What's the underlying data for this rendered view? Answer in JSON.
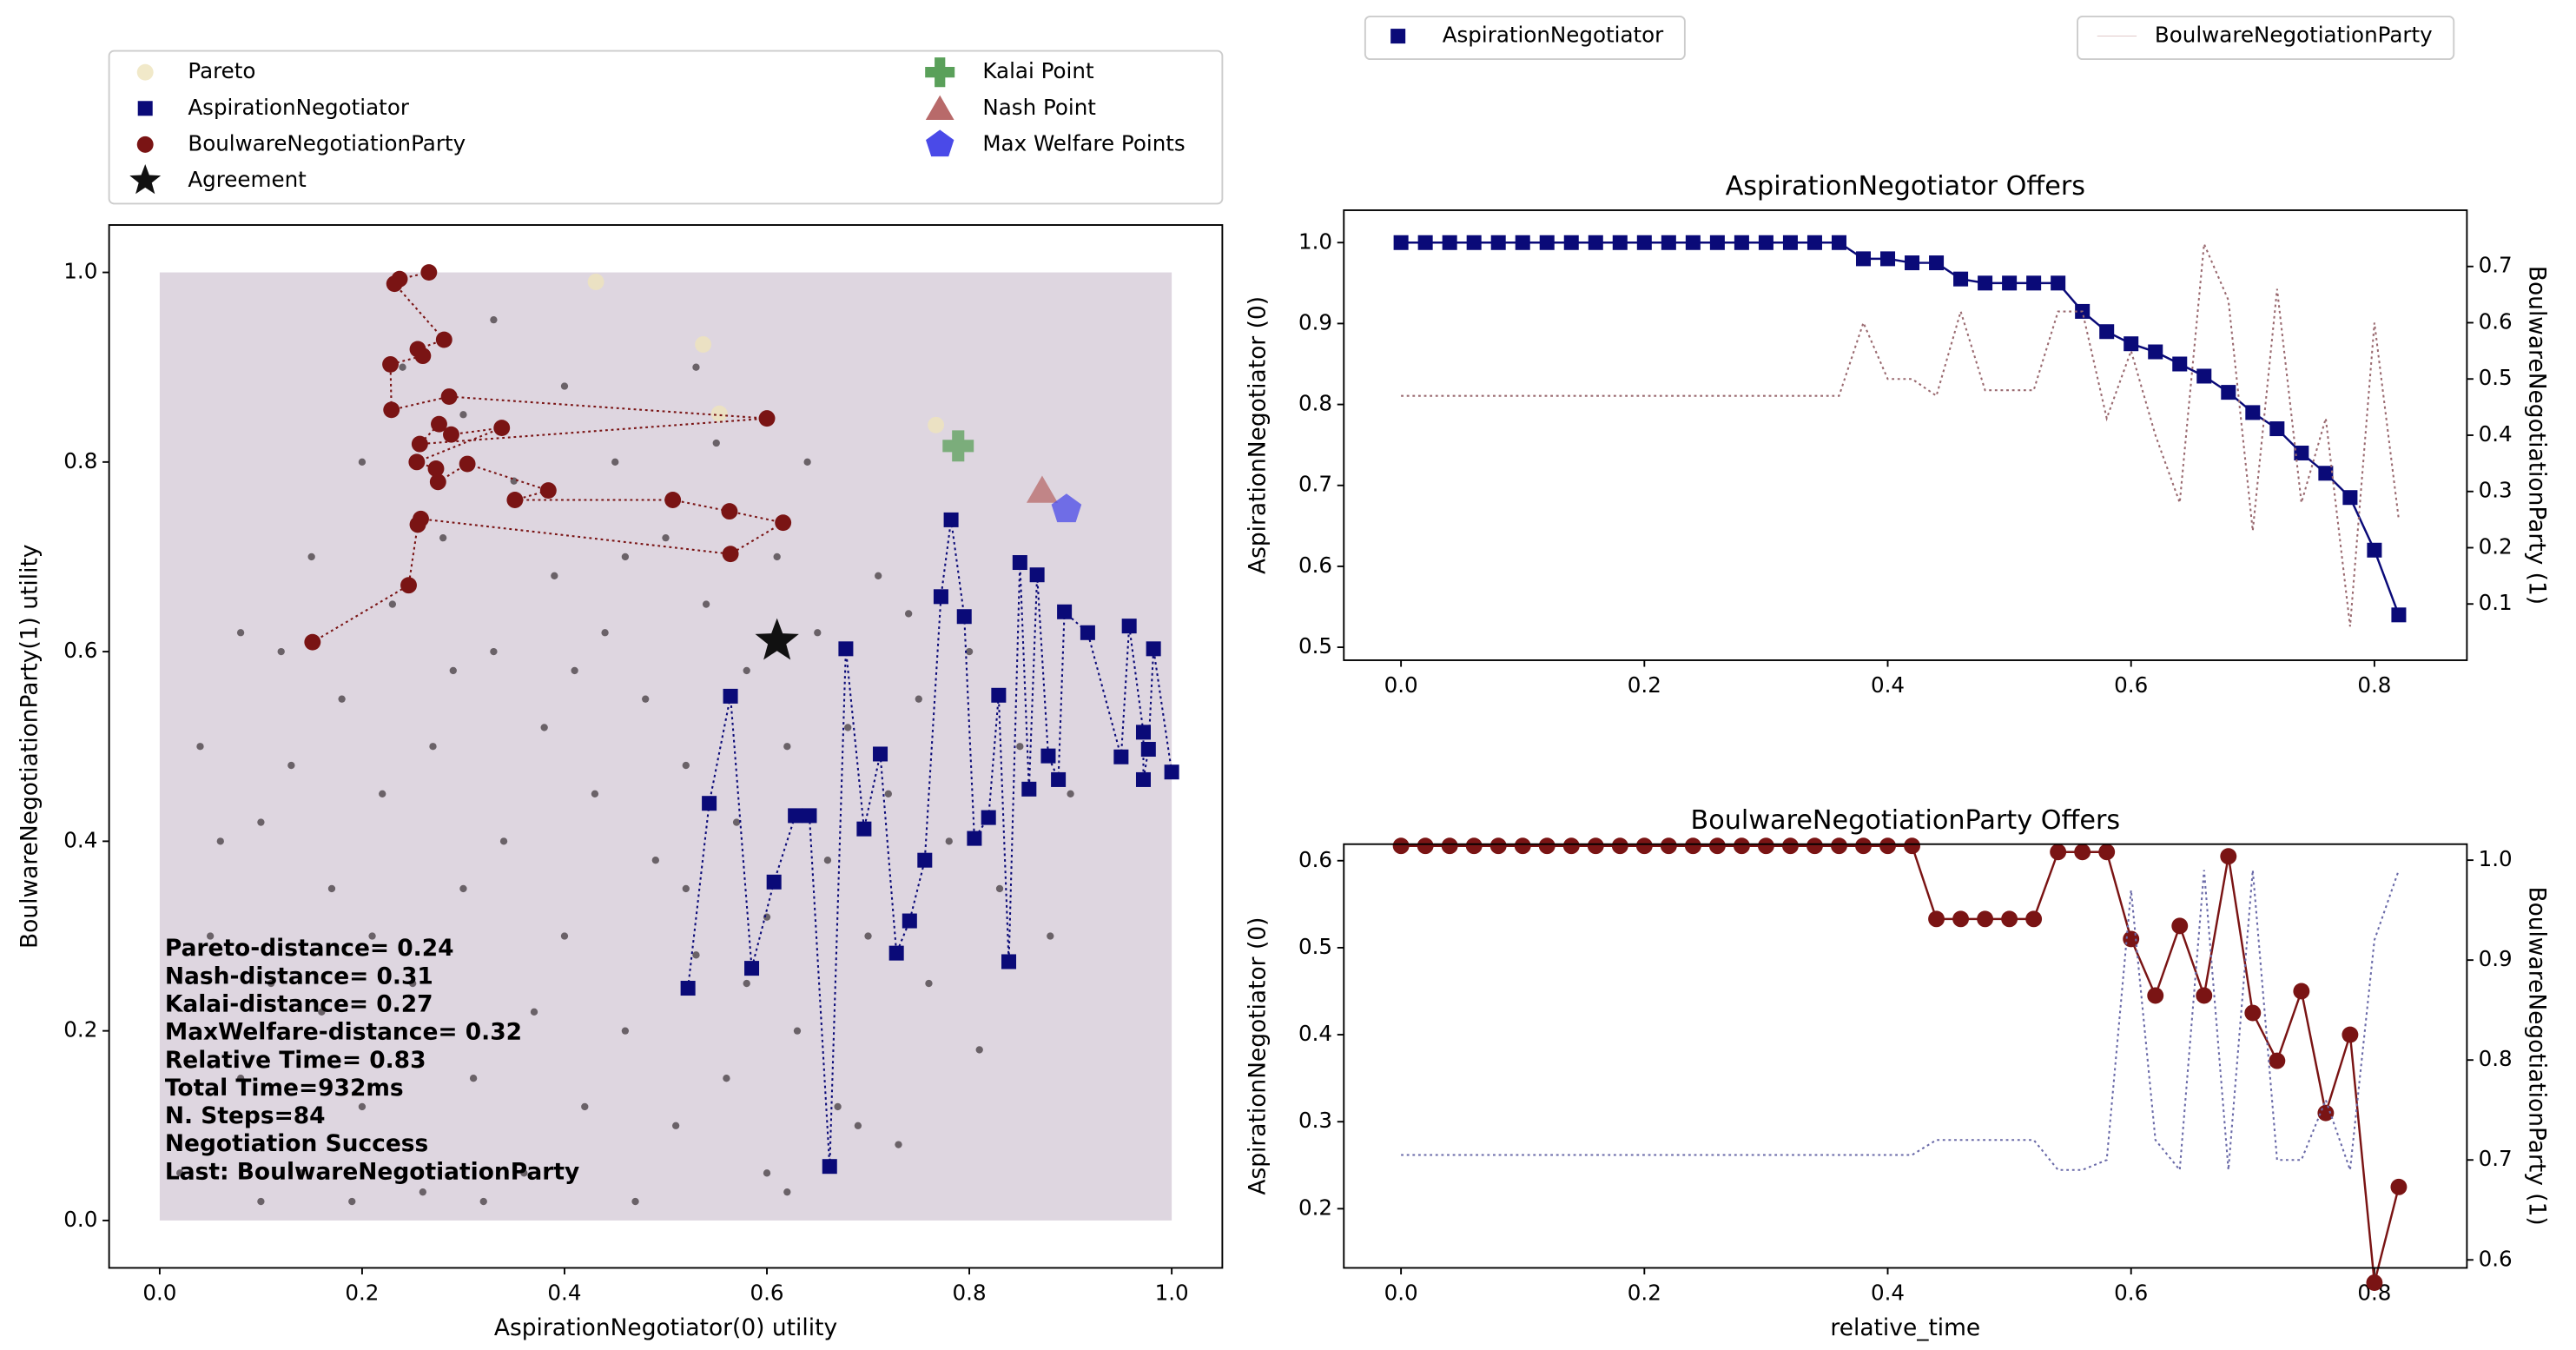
{
  "chart_data": [
    {
      "type": "scatter",
      "xlabel": "AspirationNegotiator(0) utility",
      "ylabel": "BoulwareNegotiationParty(1) utility",
      "xlim": [
        -0.05,
        1.05
      ],
      "ylim": [
        -0.05,
        1.05
      ],
      "xticks": [
        {
          "value": 0,
          "label": "0.0"
        },
        0.2,
        0.4,
        0.6,
        0.8,
        {
          "value": 1,
          "label": "1.0"
        }
      ],
      "yticks": [
        {
          "value": 0,
          "label": "0.0"
        },
        0.2,
        0.4,
        0.6,
        0.8,
        {
          "value": 1,
          "label": "1.0"
        }
      ],
      "legend": "top",
      "annotations": [
        "Pareto-distance= 0.24",
        "Nash-distance= 0.31",
        "Kalai-distance= 0.27",
        "MaxWelfare-distance= 0.32",
        "Relative Time= 0.83",
        "Total Time=932ms",
        "N. Steps=84",
        "Negotiation Success",
        "Last: BoulwareNegotiationParty"
      ],
      "series": [
        {
          "color": "#6a6268",
          "marker": "dot",
          "x": [
            0.02,
            0.05,
            0.04,
            0.08,
            0.1,
            0.12,
            0.11,
            0.15,
            0.14,
            0.17,
            0.18,
            0.2,
            0.2,
            0.22,
            0.23,
            0.25,
            0.26,
            0.27,
            0.28,
            0.3,
            0.3,
            0.31,
            0.33,
            0.34,
            0.35,
            0.36,
            0.37,
            0.38,
            0.39,
            0.4,
            0.4,
            0.42,
            0.43,
            0.44,
            0.45,
            0.46,
            0.47,
            0.48,
            0.49,
            0.5,
            0.51,
            0.52,
            0.53,
            0.54,
            0.55,
            0.56,
            0.57,
            0.58,
            0.6,
            0.6,
            0.61,
            0.62,
            0.63,
            0.65,
            0.66,
            0.67,
            0.68,
            0.7,
            0.71,
            0.72,
            0.73,
            0.75,
            0.76,
            0.78,
            0.8,
            0.81,
            0.83,
            0.85,
            0.88,
            0.9,
            0.08,
            0.13,
            0.16,
            0.19,
            0.24,
            0.29,
            0.32,
            0.41,
            0.46,
            0.53,
            0.58,
            0.64,
            0.69,
            0.74,
            0.06,
            0.1,
            0.21,
            0.33,
            0.52,
            0.62
          ],
          "y": [
            0.05,
            0.3,
            0.5,
            0.15,
            0.42,
            0.6,
            0.25,
            0.7,
            0.05,
            0.35,
            0.55,
            0.8,
            0.12,
            0.45,
            0.65,
            0.25,
            0.03,
            0.5,
            0.72,
            0.85,
            0.35,
            0.15,
            0.6,
            0.4,
            0.78,
            0.05,
            0.22,
            0.52,
            0.68,
            0.88,
            0.3,
            0.12,
            0.45,
            0.62,
            0.8,
            0.2,
            0.02,
            0.55,
            0.38,
            0.72,
            0.1,
            0.48,
            0.28,
            0.65,
            0.82,
            0.15,
            0.42,
            0.58,
            0.05,
            0.32,
            0.7,
            0.5,
            0.2,
            0.62,
            0.38,
            0.12,
            0.52,
            0.3,
            0.68,
            0.45,
            0.08,
            0.55,
            0.25,
            0.4,
            0.6,
            0.18,
            0.35,
            0.5,
            0.3,
            0.45,
            0.62,
            0.48,
            0.22,
            0.02,
            0.9,
            0.58,
            0.02,
            0.58,
            0.7,
            0.9,
            0.25,
            0.8,
            0.1,
            0.64,
            0.4,
            0.02,
            0.3,
            0.95,
            0.35,
            0.03
          ]
        },
        {
          "name": "Pareto",
          "color": "#eee3bb",
          "marker": "circle",
          "alpha": 0.8,
          "x": [
            0.431,
            0.537,
            0.553,
            0.767
          ],
          "y": [
            0.99,
            0.924,
            0.851,
            0.839
          ]
        },
        {
          "name": "AspirationNegotiator",
          "color": "#0a0a78",
          "marker": "square",
          "linestyle": "dotted",
          "x": [
            0.522,
            0.543,
            0.564,
            0.585,
            0.607,
            0.628,
            0.642,
            0.662,
            0.678,
            0.696,
            0.712,
            0.728,
            0.741,
            0.756,
            0.772,
            0.782,
            0.795,
            0.805,
            0.819,
            0.829,
            0.839,
            0.85,
            0.859,
            0.867,
            0.878,
            0.888,
            0.894,
            0.917,
            0.95,
            0.958,
            0.972,
            0.972,
            0.977,
            0.982,
            1.0
          ],
          "y": [
            0.245,
            0.44,
            0.553,
            0.266,
            0.357,
            0.427,
            0.427,
            0.057,
            0.603,
            0.413,
            0.492,
            0.282,
            0.316,
            0.38,
            0.658,
            0.739,
            0.637,
            0.403,
            0.425,
            0.554,
            0.273,
            0.694,
            0.455,
            0.681,
            0.49,
            0.465,
            0.642,
            0.62,
            0.489,
            0.627,
            0.515,
            0.465,
            0.497,
            0.603,
            0.473
          ]
        },
        {
          "name": "BoulwareNegotiationParty",
          "color": "#7a1414",
          "marker": "circle",
          "linestyle": "dotted",
          "x": [
            0.266,
            0.237,
            0.232,
            0.281,
            0.255,
            0.26,
            0.228,
            0.229,
            0.286,
            0.6,
            0.257,
            0.276,
            0.288,
            0.338,
            0.254,
            0.273,
            0.275,
            0.304,
            0.384,
            0.351,
            0.507,
            0.563,
            0.616,
            0.564,
            0.258,
            0.255,
            0.246,
            0.151
          ],
          "y": [
            1.0,
            0.993,
            0.988,
            0.929,
            0.919,
            0.912,
            0.903,
            0.855,
            0.869,
            0.846,
            0.819,
            0.84,
            0.829,
            0.836,
            0.8,
            0.793,
            0.779,
            0.798,
            0.77,
            0.76,
            0.76,
            0.748,
            0.736,
            0.703,
            0.74,
            0.734,
            0.67,
            0.61
          ]
        },
        {
          "name": "Agreement",
          "color": "#111111",
          "marker": "star",
          "x": [
            0.61
          ],
          "y": [
            0.611
          ]
        },
        {
          "name": "Kalai Point",
          "color": "#5aa05a",
          "marker": "plus",
          "x": [
            0.789
          ],
          "y": [
            0.817
          ]
        },
        {
          "name": "Nash Point",
          "color": "#b86a6a",
          "marker": "triangle",
          "x": [
            0.872
          ],
          "y": [
            0.77
          ]
        },
        {
          "name": "Max Welfare Points",
          "color": "#4a4ae8",
          "marker": "pentagon",
          "x": [
            0.896
          ],
          "y": [
            0.75
          ]
        }
      ]
    },
    {
      "type": "line",
      "title": "AspirationNegotiator Offers",
      "ylabel": "AspirationNegotiator (0)",
      "y2label": "BoulwareNegotiationParty (1)",
      "legend": "top-left",
      "xlim": [
        -0.047,
        0.876
      ],
      "ylim": [
        0.484,
        1.04
      ],
      "y2lim": [
        0,
        0.8
      ],
      "xticks": [
        {
          "value": 0,
          "label": "0.0"
        },
        0.2,
        0.4,
        0.6,
        0.8
      ],
      "yticks": [
        0.5,
        0.6,
        0.7,
        0.8,
        0.9,
        {
          "value": 1,
          "label": "1.0"
        }
      ],
      "y2ticks": [
        0.1,
        0.2,
        0.3,
        0.4,
        0.5,
        0.6,
        0.7
      ],
      "x": [
        0,
        0.02,
        0.04,
        0.06,
        0.08,
        0.1,
        0.12,
        0.14,
        0.16,
        0.18,
        0.2,
        0.22,
        0.24,
        0.26,
        0.28,
        0.3,
        0.32,
        0.34,
        0.36,
        0.38,
        0.4,
        0.42,
        0.44,
        0.46,
        0.48,
        0.5,
        0.52,
        0.54,
        0.56,
        0.58,
        0.6,
        0.62,
        0.64,
        0.66,
        0.68,
        0.7,
        0.72,
        0.74,
        0.76,
        0.78,
        0.8,
        0.82
      ],
      "series": [
        {
          "name": "AspirationNegotiator",
          "color": "#0a0a78",
          "marker": "square",
          "linestyle": "solid",
          "values": [
            1,
            1,
            1,
            1,
            1,
            1,
            1,
            1,
            1,
            1,
            1,
            1,
            1,
            1,
            1,
            1,
            1,
            1,
            1,
            0.98,
            0.98,
            0.975,
            0.975,
            0.955,
            0.95,
            0.95,
            0.95,
            0.95,
            0.915,
            0.89,
            0.875,
            0.865,
            0.85,
            0.835,
            0.815,
            0.79,
            0.77,
            0.74,
            0.715,
            0.685,
            0.62,
            0.54
          ]
        },
        {
          "color": "#9a6a70",
          "axis": "y2",
          "linestyle": "dotted",
          "values": [
            0.47,
            0.47,
            0.47,
            0.47,
            0.47,
            0.47,
            0.47,
            0.47,
            0.47,
            0.47,
            0.47,
            0.47,
            0.47,
            0.47,
            0.47,
            0.47,
            0.47,
            0.47,
            0.47,
            0.6,
            0.5,
            0.5,
            0.47,
            0.62,
            0.48,
            0.48,
            0.48,
            0.62,
            0.62,
            0.43,
            0.55,
            0.4,
            0.28,
            0.74,
            0.64,
            0.23,
            0.66,
            0.28,
            0.43,
            0.06,
            0.6,
            0.25
          ]
        }
      ]
    },
    {
      "type": "line",
      "title": "BoulwareNegotiationParty Offers",
      "xlabel": "relative_time",
      "ylabel": "AspirationNegotiator (0)",
      "y2label": "BoulwareNegotiationParty (1)",
      "legend": "top-right",
      "xlim": [
        -0.047,
        0.876
      ],
      "ylim": [
        0.132,
        0.619
      ],
      "y2lim": [
        0.592,
        1.016
      ],
      "xticks": [
        {
          "value": 0,
          "label": "0.0"
        },
        0.2,
        0.4,
        0.6,
        0.8
      ],
      "yticks": [
        0.2,
        0.3,
        0.4,
        0.5,
        0.6
      ],
      "y2ticks": [
        0.6,
        0.7,
        0.8,
        0.9,
        {
          "value": 1,
          "label": "1.0"
        }
      ],
      "x": [
        0,
        0.02,
        0.04,
        0.06,
        0.08,
        0.1,
        0.12,
        0.14,
        0.16,
        0.18,
        0.2,
        0.22,
        0.24,
        0.26,
        0.28,
        0.3,
        0.32,
        0.34,
        0.36,
        0.38,
        0.4,
        0.42,
        0.44,
        0.46,
        0.48,
        0.5,
        0.52,
        0.54,
        0.56,
        0.58,
        0.6,
        0.62,
        0.64,
        0.66,
        0.68,
        0.7,
        0.72,
        0.74,
        0.76,
        0.78,
        0.8,
        0.82
      ],
      "series": [
        {
          "name": "BoulwareNegotiationParty",
          "color": "#7a1414",
          "marker": "circle",
          "linestyle": "solid",
          "values": [
            0.617,
            0.617,
            0.617,
            0.617,
            0.617,
            0.617,
            0.617,
            0.617,
            0.617,
            0.617,
            0.617,
            0.617,
            0.617,
            0.617,
            0.617,
            0.617,
            0.617,
            0.617,
            0.617,
            0.617,
            0.617,
            0.617,
            0.533,
            0.533,
            0.533,
            0.533,
            0.533,
            0.61,
            0.61,
            0.61,
            0.51,
            0.445,
            0.525,
            0.445,
            0.605,
            0.425,
            0.37,
            0.45,
            0.31,
            0.4,
            0.115,
            0.225
          ]
        },
        {
          "color": "#6a6aa8",
          "axis": "y2",
          "linestyle": "dotted",
          "values": [
            0.705,
            0.705,
            0.705,
            0.705,
            0.705,
            0.705,
            0.705,
            0.705,
            0.705,
            0.705,
            0.705,
            0.705,
            0.705,
            0.705,
            0.705,
            0.705,
            0.705,
            0.705,
            0.705,
            0.705,
            0.705,
            0.705,
            0.72,
            0.72,
            0.72,
            0.72,
            0.72,
            0.69,
            0.69,
            0.7,
            0.97,
            0.72,
            0.69,
            0.99,
            0.69,
            0.99,
            0.7,
            0.7,
            0.76,
            0.69,
            0.92,
            0.99
          ]
        }
      ]
    }
  ]
}
